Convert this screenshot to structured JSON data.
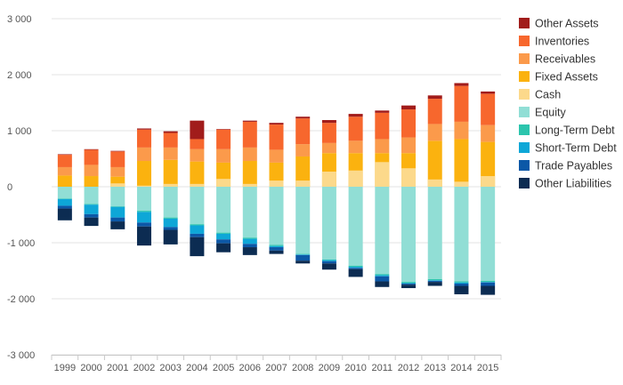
{
  "chart_data": {
    "type": "bar",
    "stacked": true,
    "categories": [
      "1999",
      "2000",
      "2001",
      "2002",
      "2003",
      "2004",
      "2005",
      "2006",
      "2007",
      "2008",
      "2009",
      "2010",
      "2011",
      "2012",
      "2013",
      "2014",
      "2015"
    ],
    "ylim": [
      -3000,
      3000
    ],
    "yticks": [
      -3000,
      -2000,
      -1000,
      0,
      1000,
      2000,
      3000
    ],
    "ytick_labels": [
      "-3 000",
      "-2 000",
      "-1 000",
      "0",
      "1 000",
      "2 000",
      "3 000"
    ],
    "grid": true,
    "legend_position": "right",
    "assets": [
      {
        "name": "Fixed Assets",
        "color": "#fbb20f",
        "values": [
          200,
          190,
          180,
          460,
          480,
          450,
          430,
          460,
          430,
          540,
          600,
          600,
          600,
          600,
          820,
          850,
          800
        ]
      },
      {
        "name": "Receivables",
        "color": "#fb9a4b",
        "values": [
          150,
          200,
          170,
          240,
          220,
          220,
          240,
          240,
          230,
          220,
          180,
          220,
          250,
          280,
          300,
          310,
          300
        ]
      },
      {
        "name": "Inventories",
        "color": "#f7672d",
        "values": [
          220,
          270,
          280,
          320,
          260,
          180,
          350,
          460,
          450,
          460,
          360,
          430,
          470,
          500,
          450,
          640,
          560
        ]
      },
      {
        "name": "Other Assets",
        "color": "#a11c1b",
        "values": [
          10,
          10,
          10,
          20,
          30,
          330,
          10,
          20,
          30,
          30,
          50,
          50,
          40,
          70,
          60,
          50,
          40
        ]
      }
    ],
    "cash": {
      "name": "Cash",
      "color": "#fcd98b",
      "values": [
        0,
        0,
        60,
        20,
        50,
        50,
        140,
        50,
        110,
        110,
        270,
        290,
        440,
        330,
        130,
        90,
        190
      ]
    },
    "liabilities": [
      {
        "name": "Equity",
        "color": "#91ded5",
        "values": [
          -210,
          -310,
          -350,
          -430,
          -550,
          -670,
          -820,
          -910,
          -1040,
          -1200,
          -1300,
          -1410,
          -1560,
          -1700,
          -1650,
          -1690,
          -1680
        ]
      },
      {
        "name": "Long-Term Debt",
        "color": "#2cc5ad",
        "values": [
          -10,
          -10,
          -10,
          -20,
          -20,
          -20,
          -20,
          -20,
          -20,
          -10,
          -10,
          -20,
          -20,
          -20,
          -20,
          -20,
          -20
        ]
      },
      {
        "name": "Short-Term Debt",
        "color": "#0ea7d7",
        "values": [
          -120,
          -170,
          -190,
          -190,
          -150,
          -150,
          -100,
          -90,
          -20,
          -10,
          -20,
          -20,
          -20,
          -10,
          -10,
          -20,
          -10
        ]
      },
      {
        "name": "Trade Payables",
        "color": "#0c58a7",
        "values": [
          -50,
          -60,
          -70,
          -70,
          -50,
          -60,
          -70,
          -60,
          -60,
          -100,
          -40,
          -20,
          -90,
          -20,
          -20,
          -40,
          -60
        ]
      },
      {
        "name": "Other Liabilities",
        "color": "#0c2c52",
        "values": [
          -210,
          -150,
          -140,
          -340,
          -260,
          -340,
          -160,
          -140,
          -60,
          -50,
          -110,
          -140,
          -100,
          -60,
          -70,
          -150,
          -160
        ]
      }
    ],
    "legend": [
      "Other Assets",
      "Inventories",
      "Receivables",
      "Fixed Assets",
      "Cash",
      "Equity",
      "Long-Term Debt",
      "Short-Term Debt",
      "Trade Payables",
      "Other Liabilities"
    ]
  }
}
